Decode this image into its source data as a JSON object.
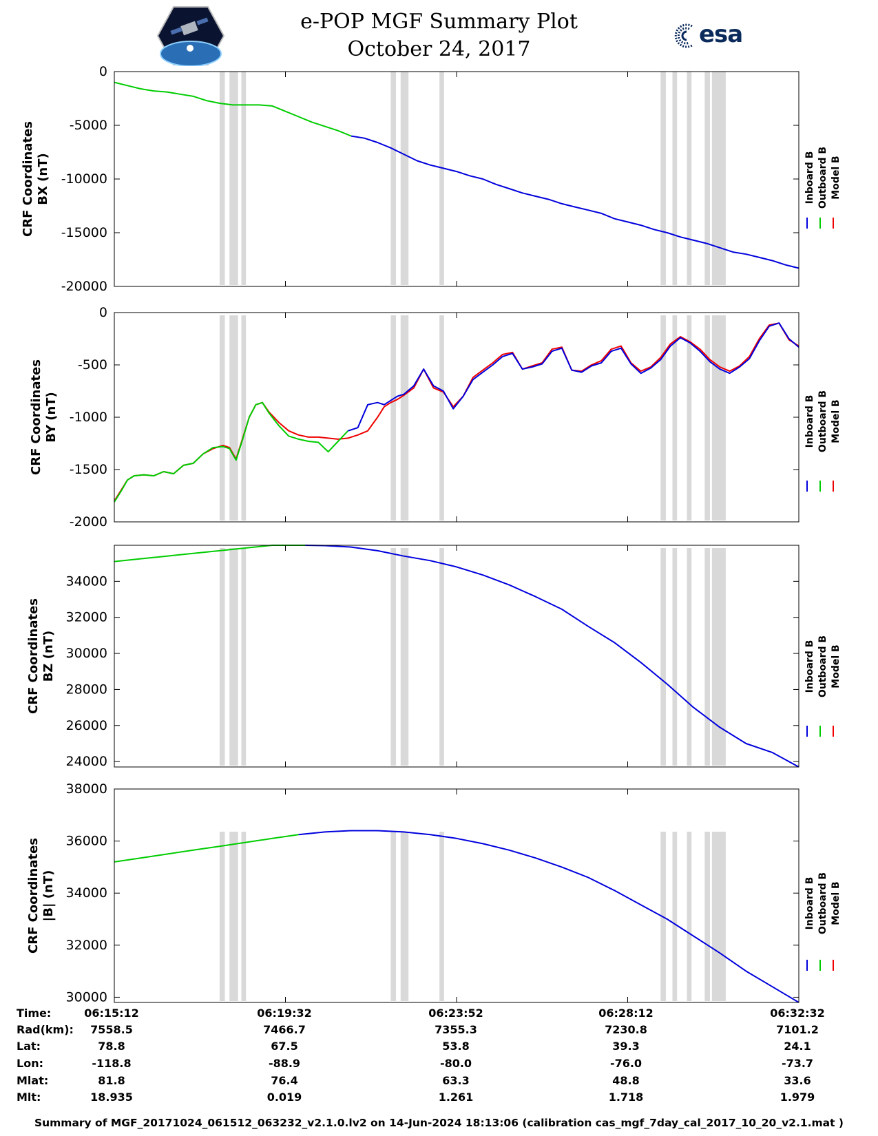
{
  "header": {
    "title_line1": "e-POP MGF Summary Plot",
    "title_line2": "October 24, 2017",
    "logo_left": "satellite-mission-logo",
    "logo_right_text": "esa"
  },
  "colors": {
    "inboard": "#0000dd",
    "outboard": "#00cc00",
    "model": "#ee0000",
    "gap_bands": "#d9d9d9"
  },
  "chart_data": [
    {
      "type": "line",
      "ylabel_line1": "CRF Coordinates",
      "ylabel_line2": "BX (nT)",
      "ylim": [
        -20000,
        0
      ],
      "yticks": [
        0,
        -5000,
        -10000,
        -15000,
        -20000
      ],
      "ytick_labels": [
        "0",
        "-5000",
        "-10000",
        "-15000",
        "-20000"
      ],
      "legend": [
        "Inboard B",
        "Outboard B",
        "Model B"
      ],
      "legend_position": "right",
      "series": [
        {
          "name": "Outboard B",
          "color": "outboard",
          "x_seconds": [
            0,
            20,
            40,
            60,
            80,
            100,
            120,
            140,
            160,
            180,
            200,
            220,
            240,
            260,
            280,
            300,
            320,
            340,
            360
          ],
          "values": [
            -1000,
            -1300,
            -1600,
            -1800,
            -1900,
            -2100,
            -2300,
            -2700,
            -2950,
            -3100,
            -3100,
            -3100,
            -3200,
            -3700,
            -4200,
            -4700,
            -5100,
            -5500,
            -6000
          ]
        },
        {
          "name": "Inboard B",
          "color": "inboard",
          "x_seconds": [
            360,
            380,
            400,
            420,
            440,
            460,
            480,
            500,
            520,
            540,
            560,
            580,
            600,
            620,
            640,
            660,
            680,
            700,
            720,
            740,
            760,
            780,
            800,
            820,
            840,
            860,
            880,
            900,
            920,
            940,
            960,
            980,
            1000,
            1020,
            1040
          ],
          "values": [
            -6000,
            -6200,
            -6600,
            -7100,
            -7700,
            -8300,
            -8700,
            -9000,
            -9300,
            -9700,
            -10000,
            -10500,
            -10900,
            -11300,
            -11600,
            -11900,
            -12300,
            -12600,
            -12900,
            -13200,
            -13700,
            -14000,
            -14300,
            -14700,
            -15000,
            -15400,
            -15700,
            -16000,
            -16400,
            -16800,
            -17000,
            -17300,
            -17600,
            -18000,
            -18300
          ]
        }
      ]
    },
    {
      "type": "line",
      "ylabel_line1": "CRF Coordinates",
      "ylabel_line2": "BY (nT)",
      "ylim": [
        -2000,
        0
      ],
      "yticks": [
        0,
        -500,
        -1000,
        -1500,
        -2000
      ],
      "ytick_labels": [
        "0",
        "-500",
        "-1000",
        "-1500",
        "-2000"
      ],
      "legend": [
        "Inboard B",
        "Outboard B",
        "Model B"
      ],
      "legend_position": "right",
      "series": [
        {
          "name": "Model B",
          "color": "model",
          "x_seconds": [
            0,
            10,
            20,
            30,
            45,
            60,
            75,
            90,
            105,
            120,
            135,
            150,
            165,
            175,
            185,
            195,
            205,
            215,
            225,
            235,
            250,
            265,
            280,
            295,
            310,
            325,
            340,
            355,
            370,
            385,
            400,
            410,
            420,
            430,
            440,
            455,
            470,
            485,
            500,
            515,
            530,
            545,
            560,
            575,
            590,
            605,
            620,
            635,
            650,
            665,
            680,
            695,
            710,
            725,
            740,
            755,
            770,
            785,
            800,
            815,
            830,
            845,
            860,
            875,
            890,
            905,
            920,
            935,
            950,
            965,
            980,
            995,
            1010,
            1025,
            1040
          ],
          "values": [
            -1800,
            -1700,
            -1600,
            -1560,
            -1550,
            -1560,
            -1520,
            -1540,
            -1460,
            -1440,
            -1350,
            -1300,
            -1270,
            -1290,
            -1400,
            -1200,
            -1000,
            -880,
            -860,
            -950,
            -1050,
            -1130,
            -1170,
            -1190,
            -1190,
            -1200,
            -1210,
            -1200,
            -1170,
            -1130,
            -1000,
            -900,
            -860,
            -830,
            -790,
            -720,
            -540,
            -720,
            -760,
            -900,
            -800,
            -620,
            -550,
            -480,
            -400,
            -380,
            -540,
            -510,
            -480,
            -350,
            -330,
            -550,
            -560,
            -500,
            -460,
            -350,
            -320,
            -480,
            -560,
            -520,
            -430,
            -300,
            -230,
            -280,
            -350,
            -450,
            -520,
            -560,
            -510,
            -420,
            -250,
            -120,
            -100,
            -260,
            -320
          ]
        },
        {
          "name": "Outboard B",
          "color": "outboard",
          "x_seconds": [
            0,
            10,
            20,
            30,
            45,
            60,
            75,
            90,
            105,
            120,
            135,
            150,
            165,
            175,
            185,
            195,
            205,
            215,
            225,
            235,
            250,
            265,
            280,
            295,
            310,
            325,
            340,
            355
          ],
          "values": [
            -1810,
            -1710,
            -1600,
            -1560,
            -1550,
            -1560,
            -1520,
            -1540,
            -1460,
            -1440,
            -1350,
            -1290,
            -1280,
            -1300,
            -1410,
            -1210,
            -1000,
            -880,
            -860,
            -960,
            -1080,
            -1180,
            -1210,
            -1230,
            -1240,
            -1330,
            -1230,
            -1130
          ]
        },
        {
          "name": "Inboard B",
          "color": "inboard",
          "x_seconds": [
            355,
            370,
            385,
            400,
            410,
            420,
            430,
            440,
            455,
            470,
            485,
            500,
            515,
            530,
            545,
            560,
            575,
            590,
            605,
            620,
            635,
            650,
            665,
            680,
            695,
            710,
            725,
            740,
            755,
            770,
            785,
            800,
            815,
            830,
            845,
            860,
            875,
            890,
            905,
            920,
            935,
            950,
            965,
            980,
            995,
            1010,
            1025,
            1040
          ],
          "values": [
            -1130,
            -1100,
            -880,
            -860,
            -880,
            -840,
            -800,
            -780,
            -700,
            -540,
            -700,
            -750,
            -920,
            -800,
            -640,
            -570,
            -500,
            -420,
            -390,
            -540,
            -520,
            -490,
            -370,
            -340,
            -550,
            -570,
            -510,
            -480,
            -370,
            -340,
            -490,
            -580,
            -530,
            -450,
            -320,
            -240,
            -290,
            -370,
            -470,
            -540,
            -580,
            -520,
            -440,
            -270,
            -130,
            -100,
            -250,
            -330
          ]
        }
      ]
    },
    {
      "type": "line",
      "ylabel_line1": "CRF Coordinates",
      "ylabel_line2": "BZ (nT)",
      "ylim": [
        23700,
        36000
      ],
      "yticks": [
        34000,
        32000,
        30000,
        28000,
        26000,
        24000
      ],
      "ytick_labels": [
        "34000",
        "32000",
        "30000",
        "28000",
        "26000",
        "24000"
      ],
      "legend": [
        "Inboard B",
        "Outboard B",
        "Model B"
      ],
      "legend_position": "right",
      "series": [
        {
          "name": "Outboard B",
          "color": "outboard",
          "x_seconds": [
            0,
            40,
            80,
            120,
            160,
            200,
            240,
            280,
            290
          ],
          "values": [
            35100,
            35250,
            35400,
            35550,
            35700,
            35850,
            36000,
            36000,
            36000
          ]
        },
        {
          "name": "Inboard B",
          "color": "inboard",
          "x_seconds": [
            290,
            320,
            360,
            400,
            440,
            480,
            520,
            560,
            600,
            640,
            680,
            720,
            760,
            800,
            840,
            880,
            920,
            960,
            1000,
            1040
          ],
          "values": [
            36000,
            35980,
            35900,
            35700,
            35400,
            35150,
            34800,
            34350,
            33800,
            33150,
            32450,
            31500,
            30600,
            29500,
            28300,
            27000,
            25900,
            25000,
            24500,
            23700
          ]
        }
      ]
    },
    {
      "type": "line",
      "ylabel_line1": "CRF Coordinates",
      "ylabel_line2": "|B| (nT)",
      "ylim": [
        29800,
        38000
      ],
      "yticks": [
        38000,
        36000,
        34000,
        32000,
        30000
      ],
      "ytick_labels": [
        "38000",
        "36000",
        "34000",
        "32000",
        "30000"
      ],
      "legend": [
        "Inboard B",
        "Outboard B",
        "Model B"
      ],
      "legend_position": "right",
      "series": [
        {
          "name": "Outboard B",
          "color": "outboard",
          "x_seconds": [
            0,
            40,
            80,
            120,
            160,
            200,
            240,
            280
          ],
          "values": [
            35200,
            35350,
            35500,
            35650,
            35800,
            35950,
            36100,
            36250
          ]
        },
        {
          "name": "Inboard B",
          "color": "inboard",
          "x_seconds": [
            280,
            320,
            360,
            400,
            440,
            480,
            520,
            560,
            600,
            640,
            680,
            720,
            760,
            800,
            840,
            880,
            920,
            960,
            1000,
            1040
          ],
          "values": [
            36250,
            36350,
            36400,
            36400,
            36350,
            36250,
            36100,
            35900,
            35650,
            35350,
            35000,
            34600,
            34100,
            33550,
            33000,
            32350,
            31700,
            31000,
            30400,
            29800
          ]
        }
      ]
    }
  ],
  "gap_bands_seconds": [
    [
      160,
      168
    ],
    [
      175,
      188
    ],
    [
      193,
      200
    ],
    [
      420,
      428
    ],
    [
      435,
      447
    ],
    [
      494,
      501
    ],
    [
      830,
      838
    ],
    [
      848,
      855
    ],
    [
      870,
      877
    ],
    [
      897,
      905
    ],
    [
      908,
      929
    ]
  ],
  "x_axis": {
    "range_seconds": [
      0,
      1040
    ],
    "tick_seconds": [
      0,
      260,
      520,
      780,
      1040
    ],
    "minor_tick_seconds": [
      0,
      130,
      260,
      390,
      520,
      650,
      780,
      910,
      1040
    ]
  },
  "info_table": {
    "labels": [
      "Time:",
      "Rad(km):",
      "Lat:",
      "Lon:",
      "Mlat:",
      "Mlt:"
    ],
    "columns": [
      {
        "time": "06:15:12",
        "rad": "7558.5",
        "lat": "78.8",
        "lon": "-118.8",
        "mlat": "81.8",
        "mlt": "18.935"
      },
      {
        "time": "06:19:32",
        "rad": "7466.7",
        "lat": "67.5",
        "lon": "-88.9",
        "mlat": "76.4",
        "mlt": "0.019"
      },
      {
        "time": "06:23:52",
        "rad": "7355.3",
        "lat": "53.8",
        "lon": "-80.0",
        "mlat": "63.3",
        "mlt": "1.261"
      },
      {
        "time": "06:28:12",
        "rad": "7230.8",
        "lat": "39.3",
        "lon": "-76.0",
        "mlat": "48.8",
        "mlt": "1.718"
      },
      {
        "time": "06:32:32",
        "rad": "7101.2",
        "lat": "24.1",
        "lon": "-73.7",
        "mlat": "33.6",
        "mlt": "1.979"
      }
    ]
  },
  "footer": {
    "text": "Summary of MGF_20171024_061512_063232_v2.1.0.lv2 on 14-Jun-2024 18:13:06 (calibration cas_mgf_7day_cal_2017_10_20_v2.1.mat )"
  }
}
